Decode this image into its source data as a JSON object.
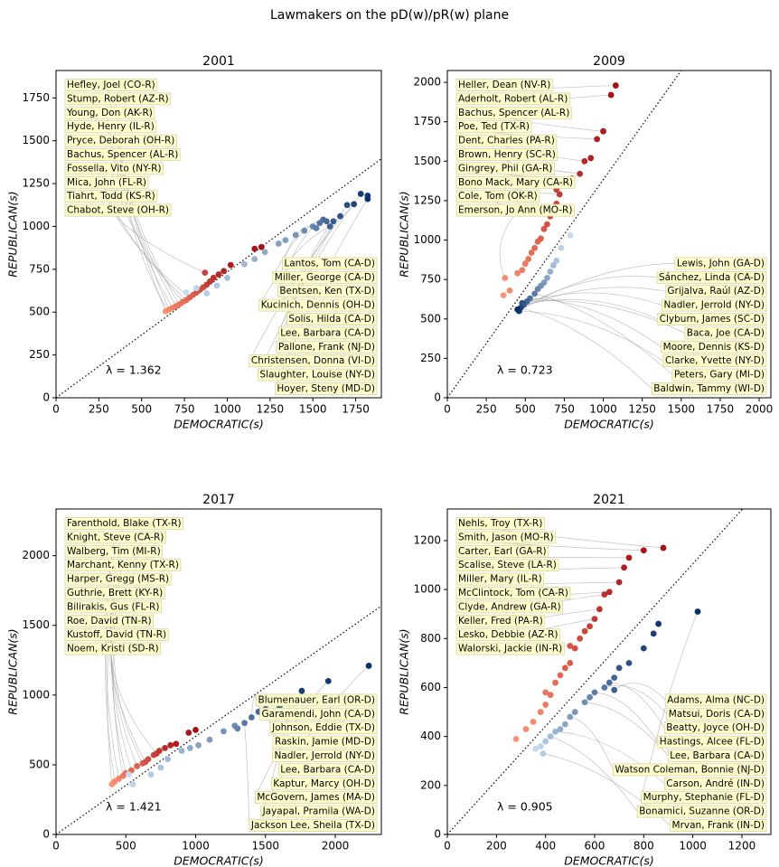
{
  "title": "Lawmakers on the pD(w)/pR(w) plane",
  "chart_data": [
    {
      "type": "scatter",
      "title": "2001",
      "xlabel": "DEMOCRATIC(s)",
      "ylabel": "REPUBLICAN(s)",
      "xlim": [
        0,
        1900
      ],
      "ylim": [
        0,
        1910
      ],
      "xticks": [
        0,
        250,
        500,
        750,
        1000,
        1250,
        1500,
        1750
      ],
      "yticks": [
        0,
        250,
        500,
        750,
        1000,
        1250,
        1500,
        1750
      ],
      "lambda": {
        "value": 1.362,
        "label": "λ = 1.362"
      },
      "series": [
        {
          "color_range": [
            "#fc9272",
            "#a50f15"
          ],
          "x": [
            640,
            660,
            680,
            700,
            720,
            740,
            760,
            780,
            800,
            820,
            840,
            860,
            870,
            880,
            900,
            920,
            950,
            980,
            1020,
            1160,
            1200
          ],
          "y": [
            505,
            515,
            525,
            535,
            545,
            560,
            570,
            585,
            600,
            615,
            630,
            645,
            730,
            660,
            680,
            700,
            720,
            740,
            775,
            870,
            880
          ]
        },
        {
          "color_range": [
            "#c6dbef",
            "#08306b"
          ],
          "x": [
            760,
            820,
            880,
            940,
            1000,
            1100,
            1160,
            1220,
            1300,
            1340,
            1400,
            1450,
            1500,
            1520,
            1540,
            1560,
            1580,
            1600,
            1620,
            1660,
            1700,
            1740,
            1780,
            1820,
            1820
          ],
          "y": [
            615,
            640,
            610,
            655,
            700,
            780,
            810,
            850,
            900,
            920,
            950,
            975,
            1000,
            990,
            1020,
            1040,
            1030,
            1000,
            1030,
            1060,
            1125,
            1130,
            1190,
            1180,
            1160
          ]
        }
      ],
      "labels_top": [
        {
          "text": "Hefley, Joel (CO-R)",
          "x": 660,
          "y": 515
        },
        {
          "text": "Stump, Robert (AZ-R)",
          "x": 640,
          "y": 505
        },
        {
          "text": "Young, Don (AK-R)",
          "x": 700,
          "y": 535
        },
        {
          "text": "Hyde, Henry (IL-R)",
          "x": 680,
          "y": 525
        },
        {
          "text": "Pryce, Deborah (OH-R)",
          "x": 720,
          "y": 545
        },
        {
          "text": "Bachus, Spencer (AL-R)",
          "x": 650,
          "y": 510
        },
        {
          "text": "Fossella, Vito (NY-R)",
          "x": 740,
          "y": 560
        },
        {
          "text": "Mica, John (FL-R)",
          "x": 760,
          "y": 570
        },
        {
          "text": "Tiahrt, Todd (KS-R)",
          "x": 780,
          "y": 585
        },
        {
          "text": "Chabot, Steve (OH-R)",
          "x": 870,
          "y": 730
        }
      ],
      "labels_bottom": [
        {
          "text": "Lantos, Tom (CA-D)",
          "x": 1500,
          "y": 1000
        },
        {
          "text": "Miller, George (CA-D)",
          "x": 1560,
          "y": 1040
        },
        {
          "text": "Bentsen, Ken (TX-D)",
          "x": 1540,
          "y": 1020
        },
        {
          "text": "Kucinich, Dennis (OH-D)",
          "x": 1600,
          "y": 1000
        },
        {
          "text": "Solis, Hilda (CA-D)",
          "x": 1620,
          "y": 1030
        },
        {
          "text": "Lee, Barbara (CA-D)",
          "x": 1660,
          "y": 1060
        },
        {
          "text": "Pallone, Frank (NJ-D)",
          "x": 1700,
          "y": 1125
        },
        {
          "text": "Christensen, Donna (VI-D)",
          "x": 1740,
          "y": 1130
        },
        {
          "text": "Slaughter, Louise (NY-D)",
          "x": 1780,
          "y": 1190
        },
        {
          "text": "Hoyer, Steny (MD-D)",
          "x": 1820,
          "y": 1160
        }
      ]
    },
    {
      "type": "scatter",
      "title": "2009",
      "xlabel": "DEMOCRATIC(s)",
      "ylabel": "REPUBLICAN(s)",
      "xlim": [
        0,
        2075
      ],
      "ylim": [
        0,
        2075
      ],
      "xticks": [
        0,
        250,
        500,
        750,
        1000,
        1250,
        1500,
        1750,
        2000
      ],
      "yticks": [
        0,
        250,
        500,
        750,
        1000,
        1250,
        1500,
        1750,
        2000
      ],
      "lambda": {
        "value": 0.723,
        "label": "λ = 0.723"
      },
      "series": [
        {
          "color_range": [
            "#fc9272",
            "#a50f15"
          ],
          "x": [
            360,
            370,
            400,
            450,
            480,
            500,
            520,
            540,
            560,
            580,
            600,
            600,
            620,
            640,
            660,
            680,
            700,
            700,
            720,
            760,
            800,
            850,
            880,
            920,
            960,
            1000,
            1050,
            1080
          ],
          "y": [
            650,
            760,
            680,
            790,
            810,
            850,
            880,
            920,
            950,
            990,
            1010,
            1200,
            1070,
            1100,
            1150,
            1190,
            1230,
            1320,
            1290,
            1350,
            1390,
            1420,
            1500,
            1520,
            1640,
            1690,
            1920,
            1980
          ]
        },
        {
          "color_range": [
            "#c6dbef",
            "#08306b"
          ],
          "x": [
            790,
            730,
            700,
            680,
            660,
            640,
            620,
            600,
            580,
            560,
            530,
            510,
            490,
            480,
            470,
            460,
            450
          ],
          "y": [
            1030,
            950,
            870,
            840,
            800,
            760,
            730,
            710,
            690,
            660,
            630,
            610,
            590,
            600,
            570,
            550,
            560
          ]
        }
      ],
      "labels_top": [
        {
          "text": "Heller, Dean (NV-R)",
          "x": 1080,
          "y": 1980
        },
        {
          "text": "Aderholt, Robert (AL-R)",
          "x": 1050,
          "y": 1920
        },
        {
          "text": "Bachus, Spencer (AL-R)",
          "x": 1000,
          "y": 1690
        },
        {
          "text": "Poe, Ted (TX-R)",
          "x": 960,
          "y": 1640
        },
        {
          "text": "Dent, Charles (PA-R)",
          "x": 880,
          "y": 1500
        },
        {
          "text": "Brown, Henry (SC-R)",
          "x": 850,
          "y": 1420
        },
        {
          "text": "Gingrey, Phil (GA-R)",
          "x": 800,
          "y": 1390
        },
        {
          "text": "Bono Mack, Mary (CA-R)",
          "x": 720,
          "y": 1290
        },
        {
          "text": "Cole, Tom (OK-R)",
          "x": 600,
          "y": 1200
        },
        {
          "text": "Emerson, Jo Ann (MO-R)",
          "x": 370,
          "y": 760
        }
      ],
      "labels_bottom": [
        {
          "text": "Lewis, John (GA-D)",
          "x": 460,
          "y": 550
        },
        {
          "text": "Sánchez, Linda (CA-D)",
          "x": 470,
          "y": 570
        },
        {
          "text": "Grijalva, Raúl (AZ-D)",
          "x": 450,
          "y": 560
        },
        {
          "text": "Nadler, Jerrold (NY-D)",
          "x": 480,
          "y": 600
        },
        {
          "text": "Clyburn, James (SC-D)",
          "x": 490,
          "y": 590
        },
        {
          "text": "Baca, Joe (CA-D)",
          "x": 510,
          "y": 610
        },
        {
          "text": "Moore, Dennis (KS-D)",
          "x": 530,
          "y": 630
        },
        {
          "text": "Clarke, Yvette (NY-D)",
          "x": 460,
          "y": 550
        },
        {
          "text": "Peters, Gary (MI-D)",
          "x": 560,
          "y": 660
        },
        {
          "text": "Baldwin, Tammy (WI-D)",
          "x": 470,
          "y": 570
        }
      ]
    },
    {
      "type": "scatter",
      "title": "2017",
      "xlabel": "DEMOCRATIC(s)",
      "ylabel": "REPUBLICAN(s)",
      "xlim": [
        0,
        2330
      ],
      "ylim": [
        0,
        2335
      ],
      "xticks": [
        0,
        500,
        1000,
        1500,
        2000
      ],
      "yticks": [
        0,
        500,
        1000,
        1500,
        2000
      ],
      "lambda": {
        "value": 1.421,
        "label": "λ = 1.421"
      },
      "series": [
        {
          "color_range": [
            "#fc9272",
            "#a50f15"
          ],
          "x": [
            400,
            420,
            450,
            480,
            500,
            540,
            580,
            620,
            640,
            660,
            700,
            720,
            740,
            780,
            820,
            860,
            950,
            1000
          ],
          "y": [
            360,
            380,
            400,
            420,
            440,
            460,
            490,
            510,
            520,
            540,
            570,
            580,
            600,
            620,
            640,
            650,
            730,
            750
          ]
        },
        {
          "color_range": [
            "#c6dbef",
            "#08306b"
          ],
          "x": [
            520,
            550,
            680,
            750,
            800,
            900,
            960,
            1020,
            1100,
            1200,
            1280,
            1300,
            1350,
            1400,
            1450,
            1500,
            1600,
            1650,
            1700,
            1760,
            1950,
            2240
          ],
          "y": [
            430,
            360,
            430,
            480,
            540,
            600,
            620,
            640,
            680,
            740,
            780,
            760,
            800,
            840,
            880,
            900,
            920,
            960,
            970,
            1030,
            1100,
            1210
          ]
        }
      ],
      "labels_top": [
        {
          "text": "Farenthold, Blake (TX-R)",
          "x": 400,
          "y": 360
        },
        {
          "text": "Knight, Steve (CA-R)",
          "x": 420,
          "y": 380
        },
        {
          "text": "Walberg, Tim (MI-R)",
          "x": 450,
          "y": 400
        },
        {
          "text": "Marchant, Kenny (TX-R)",
          "x": 480,
          "y": 420
        },
        {
          "text": "Harper, Gregg (MS-R)",
          "x": 500,
          "y": 440
        },
        {
          "text": "Guthrie, Brett (KY-R)",
          "x": 540,
          "y": 460
        },
        {
          "text": "Bilirakis, Gus (FL-R)",
          "x": 580,
          "y": 490
        },
        {
          "text": "Roe, David (TN-R)",
          "x": 640,
          "y": 520
        },
        {
          "text": "Kustoff, David (TN-R)",
          "x": 620,
          "y": 510
        },
        {
          "text": "Noem, Kristi (SD-R)",
          "x": 720,
          "y": 580
        }
      ],
      "labels_bottom": [
        {
          "text": "Blumenauer, Earl (OR-D)",
          "x": 1400,
          "y": 840
        },
        {
          "text": "Garamendi, John (CA-D)",
          "x": 1450,
          "y": 880
        },
        {
          "text": "Johnson, Eddie (TX-D)",
          "x": 1500,
          "y": 900
        },
        {
          "text": "Raskin, Jamie (MD-D)",
          "x": 1600,
          "y": 920
        },
        {
          "text": "Nadler, Jerrold (NY-D)",
          "x": 1650,
          "y": 960
        },
        {
          "text": "Lee, Barbara (CA-D)",
          "x": 1700,
          "y": 970
        },
        {
          "text": "Kaptur, Marcy (OH-D)",
          "x": 1760,
          "y": 1030
        },
        {
          "text": "McGovern, James (MA-D)",
          "x": 1950,
          "y": 1100
        },
        {
          "text": "Jayapal, Pramila (WA-D)",
          "x": 2240,
          "y": 1210
        },
        {
          "text": "Jackson Lee, Sheila (TX-D)",
          "x": 1350,
          "y": 800
        }
      ]
    },
    {
      "type": "scatter",
      "title": "2021",
      "xlabel": "DEMOCRATIC(s)",
      "ylabel": "REPUBLICAN(s)",
      "xlim": [
        0,
        1318
      ],
      "ylim": [
        0,
        1329
      ],
      "xticks": [
        0,
        200,
        400,
        600,
        800,
        1000,
        1200
      ],
      "yticks": [
        0,
        200,
        400,
        600,
        800,
        1000,
        1200
      ],
      "lambda": {
        "value": 0.905,
        "label": "λ = 0.905"
      },
      "series": [
        {
          "color_range": [
            "#fc9272",
            "#a50f15"
          ],
          "x": [
            280,
            320,
            350,
            380,
            400,
            400,
            420,
            440,
            460,
            480,
            500,
            500,
            520,
            540,
            560,
            580,
            600,
            620,
            640,
            660,
            700,
            720,
            740,
            800,
            880
          ],
          "y": [
            390,
            430,
            460,
            500,
            530,
            580,
            570,
            620,
            650,
            680,
            700,
            770,
            760,
            800,
            830,
            850,
            880,
            920,
            980,
            990,
            1030,
            1090,
            1130,
            1160,
            1170
          ]
        },
        {
          "color_range": [
            "#c6dbef",
            "#08306b"
          ],
          "x": [
            360,
            380,
            390,
            400,
            420,
            440,
            460,
            480,
            500,
            520,
            560,
            580,
            600,
            640,
            660,
            680,
            680,
            700,
            740,
            800,
            840,
            860,
            1020
          ],
          "y": [
            350,
            360,
            330,
            380,
            400,
            420,
            430,
            450,
            480,
            500,
            540,
            560,
            580,
            600,
            620,
            640,
            590,
            680,
            700,
            760,
            820,
            860,
            910
          ]
        }
      ],
      "labels_top": [
        {
          "text": "Nehls, Troy (TX-R)",
          "x": 880,
          "y": 1170
        },
        {
          "text": "Smith, Jason (MO-R)",
          "x": 800,
          "y": 1160
        },
        {
          "text": "Carter, Earl (GA-R)",
          "x": 740,
          "y": 1130
        },
        {
          "text": "Scalise, Steve (LA-R)",
          "x": 720,
          "y": 1090
        },
        {
          "text": "Miller, Mary (IL-R)",
          "x": 700,
          "y": 1030
        },
        {
          "text": "McClintock, Tom (CA-R)",
          "x": 660,
          "y": 990
        },
        {
          "text": "Clyde, Andrew (GA-R)",
          "x": 640,
          "y": 980
        },
        {
          "text": "Keller, Fred (PA-R)",
          "x": 620,
          "y": 920
        },
        {
          "text": "Lesko, Debbie (AZ-R)",
          "x": 600,
          "y": 880
        },
        {
          "text": "Walorski, Jackie (IN-R)",
          "x": 500,
          "y": 770
        }
      ],
      "labels_bottom": [
        {
          "text": "Adams, Alma (NC-D)",
          "x": 680,
          "y": 590
        },
        {
          "text": "Matsui, Doris (CA-D)",
          "x": 640,
          "y": 600
        },
        {
          "text": "Beatty, Joyce (OH-D)",
          "x": 660,
          "y": 620
        },
        {
          "text": "Hastings, Alcee (FL-D)",
          "x": 600,
          "y": 580
        },
        {
          "text": "Lee, Barbara (CA-D)",
          "x": 560,
          "y": 540
        },
        {
          "text": "Watson Coleman, Bonnie (NJ-D)",
          "x": 500,
          "y": 480
        },
        {
          "text": "Carson, André (IN-D)",
          "x": 440,
          "y": 420
        },
        {
          "text": "Murphy, Stephanie (FL-D)",
          "x": 1020,
          "y": 910
        },
        {
          "text": "Bonamici, Suzanne (OR-D)",
          "x": 420,
          "y": 400
        },
        {
          "text": "Mrvan, Frank (IN-D)",
          "x": 390,
          "y": 330
        }
      ]
    }
  ]
}
